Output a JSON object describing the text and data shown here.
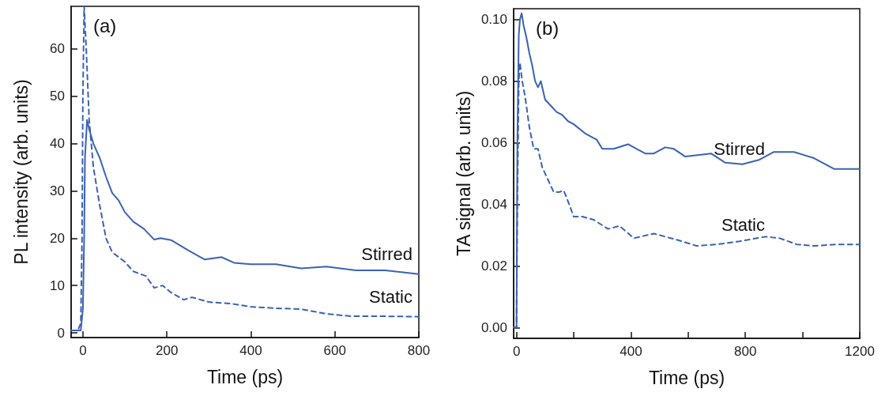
{
  "chart_data": [
    {
      "type": "line",
      "xlabel": "Time (ps)",
      "ylabel": "PL intensity (arb. units)",
      "annotations": [
        "(a)"
      ],
      "xlim": [
        -28,
        800
      ],
      "xticks": [
        0,
        200,
        400,
        600,
        800
      ],
      "ylim": [
        -1,
        69
      ],
      "yticks": [
        0,
        10,
        20,
        30,
        40,
        50,
        60
      ],
      "grid": false,
      "legend": false,
      "marker": "none",
      "series": [
        {
          "name": "Stirred",
          "color": "#3a62b5",
          "line_style": "solid",
          "x": [
            -28,
            -10,
            -5,
            0,
            3,
            5,
            10,
            15,
            25,
            40,
            55,
            70,
            85,
            100,
            120,
            145,
            170,
            185,
            210,
            250,
            290,
            330,
            360,
            400,
            460,
            520,
            580,
            650,
            720,
            800
          ],
          "values": [
            0.5,
            0.5,
            0.5,
            5,
            20,
            37,
            45,
            43,
            40,
            37,
            33,
            29.5,
            28,
            25.5,
            23.5,
            22,
            19.7,
            20,
            19.6,
            17.5,
            15.5,
            16,
            14.8,
            14.5,
            14.5,
            13.6,
            14,
            13.2,
            13.2,
            12.4
          ]
        },
        {
          "name": "Static",
          "color": "#3a62b5",
          "line_style": "dashed",
          "x": [
            -28,
            -12,
            -5,
            -2,
            0,
            3,
            8,
            15,
            25,
            40,
            55,
            70,
            85,
            100,
            120,
            150,
            170,
            190,
            210,
            240,
            260,
            300,
            350,
            400,
            460,
            520,
            580,
            640,
            720,
            800
          ],
          "values": [
            0.5,
            0.5,
            2,
            20,
            50,
            69,
            60,
            45,
            35,
            27,
            20,
            17,
            16,
            15,
            13,
            12,
            9.5,
            10,
            8.5,
            7,
            7.5,
            6.5,
            6.2,
            5.5,
            5.2,
            5,
            4,
            3.5,
            3.5,
            3.4
          ]
        }
      ]
    },
    {
      "type": "line",
      "xlabel": "Time (ps)",
      "ylabel": "TA signal (arb. units)",
      "annotations": [
        "(b)"
      ],
      "xlim": [
        -10,
        1200
      ],
      "xticks": [
        0,
        {
          "value": 200,
          "label": null
        },
        400,
        {
          "value": 600,
          "label": null
        },
        800,
        {
          "value": 1000,
          "label": null
        },
        1200
      ],
      "ylim": [
        -0.0035,
        0.1035
      ],
      "yticks": [
        {
          "value": 0,
          "label": "0.00"
        },
        {
          "value": 0.02,
          "label": "0.02"
        },
        {
          "value": 0.04,
          "label": "0.04"
        },
        {
          "value": 0.06,
          "label": "0.06"
        },
        {
          "value": 0.08,
          "label": "0.08"
        },
        {
          "value": 0.1,
          "label": "0.10"
        }
      ],
      "grid": false,
      "legend": false,
      "marker": "none",
      "series": [
        {
          "name": "Stirred",
          "color": "#3a62b5",
          "line_style": "solid",
          "x": [
            -10,
            0,
            3,
            8,
            12,
            18,
            25,
            35,
            45,
            55,
            65,
            75,
            85,
            100,
            120,
            140,
            160,
            180,
            200,
            240,
            280,
            300,
            340,
            390,
            420,
            450,
            480,
            520,
            550,
            590,
            680,
            730,
            790,
            850,
            900,
            970,
            1040,
            1110,
            1200
          ],
          "values": [
            0,
            0,
            0.06,
            0.095,
            0.1,
            0.102,
            0.098,
            0.094,
            0.089,
            0.085,
            0.08,
            0.078,
            0.08,
            0.074,
            0.072,
            0.07,
            0.069,
            0.067,
            0.066,
            0.063,
            0.061,
            0.058,
            0.058,
            0.0595,
            0.058,
            0.0565,
            0.0565,
            0.0585,
            0.058,
            0.0555,
            0.0565,
            0.0535,
            0.053,
            0.0545,
            0.057,
            0.057,
            0.055,
            0.0515,
            0.0515
          ]
        },
        {
          "name": "Static",
          "color": "#3a62b5",
          "line_style": "dashed",
          "x": [
            -10,
            0,
            3,
            8,
            12,
            20,
            30,
            45,
            60,
            75,
            90,
            110,
            130,
            150,
            165,
            180,
            200,
            230,
            270,
            320,
            360,
            410,
            480,
            560,
            630,
            700,
            780,
            870,
            920,
            980,
            1040,
            1120,
            1200
          ],
          "values": [
            0,
            0,
            0.04,
            0.08,
            0.086,
            0.08,
            0.075,
            0.065,
            0.058,
            0.058,
            0.052,
            0.048,
            0.044,
            0.044,
            0.0445,
            0.041,
            0.036,
            0.036,
            0.035,
            0.032,
            0.033,
            0.029,
            0.0305,
            0.0285,
            0.0265,
            0.027,
            0.028,
            0.0295,
            0.029,
            0.027,
            0.0265,
            0.027,
            0.027
          ]
        }
      ]
    }
  ]
}
